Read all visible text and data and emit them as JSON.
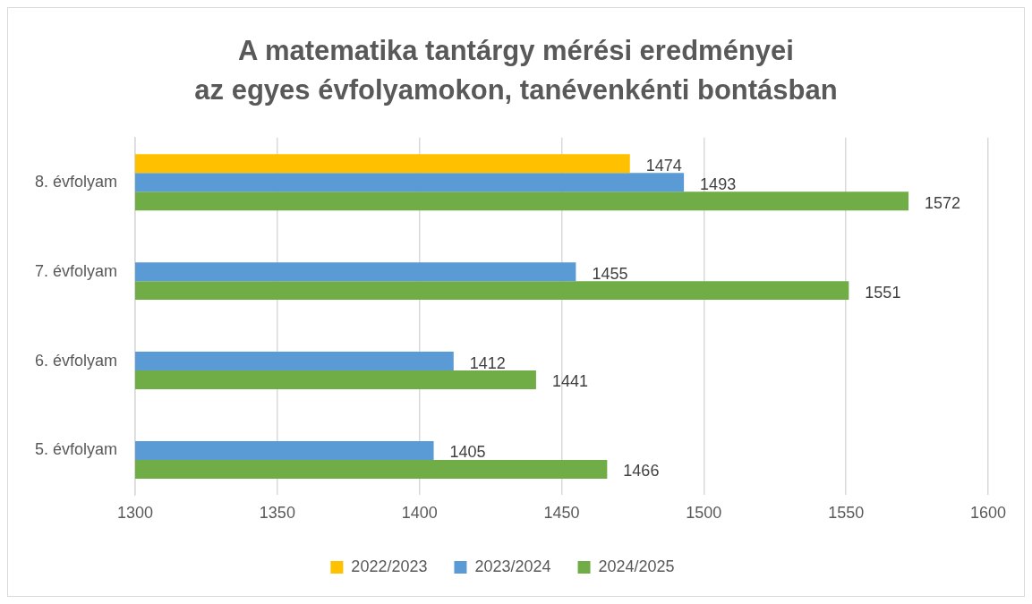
{
  "chart_data": {
    "type": "bar",
    "orientation": "horizontal",
    "title": "A matematika tantárgy mérési eredményei\naz egyes évfolyamokon, tanévenkénti bontásban",
    "categories": [
      "8. évfolyam",
      "7. évfolyam",
      "6. évfolyam",
      "5. évfolyam"
    ],
    "series": [
      {
        "name": "2022/2023",
        "color": "#ffc000",
        "values": [
          1474,
          null,
          null,
          null
        ]
      },
      {
        "name": "2023/2024",
        "color": "#5b9bd5",
        "values": [
          1493,
          1455,
          1412,
          1405
        ]
      },
      {
        "name": "2024/2025",
        "color": "#70ad47",
        "values": [
          1572,
          1551,
          1441,
          1466
        ]
      }
    ],
    "xlim": [
      1300,
      1600
    ],
    "xticks": [
      1300,
      1350,
      1400,
      1450,
      1500,
      1550,
      1600
    ],
    "grid": "x",
    "legend": "bottom",
    "data_labels": true
  }
}
